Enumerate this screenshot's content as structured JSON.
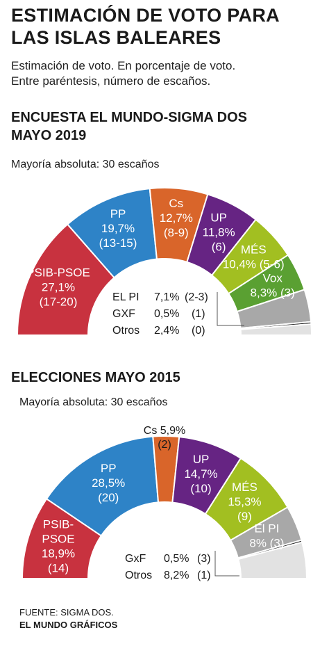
{
  "title_line1": "ESTIMACIÓN DE VOTO PARA",
  "title_line2": "LAS ISLAS BALEARES",
  "subtitle_line1": "Estimación de voto. En porcentaje de voto.",
  "subtitle_line2": "Entre paréntesis, número de escaños.",
  "source_line1": "FUENTE: SIGMA DOS.",
  "source_line2": "EL MUNDO GRÁFICOS",
  "chart_data": [
    {
      "type": "parliament-hemicycle",
      "title_line1": "ENCUESTA EL MUNDO-SIGMA DOS",
      "title_line2": "MAYO 2019",
      "note": "Mayoría absoluta: 30 escaños",
      "series": [
        {
          "party": "PSIB-PSOE",
          "percent": "27,1%",
          "seats": "(17-20)",
          "value": 27.1,
          "color": "#c8323f"
        },
        {
          "party": "PP",
          "percent": "19,7%",
          "seats": "(13-15)",
          "value": 19.7,
          "color": "#2e83c7"
        },
        {
          "party": "Cs",
          "percent": "12,7%",
          "seats": "(8-9)",
          "value": 12.7,
          "color": "#d9652a"
        },
        {
          "party": "UP",
          "percent": "11,8%",
          "seats": "(6)",
          "value": 11.8,
          "color": "#662483"
        },
        {
          "party": "MÉS",
          "percent": "10,4% (5-6)",
          "seats": "",
          "value": 10.4,
          "color": "#a2bf21"
        },
        {
          "party": "Vox",
          "percent": "8,3% (3)",
          "seats": "",
          "value": 8.3,
          "color": "#5aa032"
        },
        {
          "party": "EL PI",
          "percent": "7,1%",
          "seats": "(2-3)",
          "value": 7.1,
          "color": "#a8a8a8"
        },
        {
          "party": "GXF",
          "percent": "0,5%",
          "seats": "(1)",
          "value": 0.5,
          "color": "#1a1a1a"
        },
        {
          "party": "Otros",
          "percent": "2,4%",
          "seats": "(0)",
          "value": 2.4,
          "color": "#e2e2e2"
        }
      ]
    },
    {
      "type": "parliament-hemicycle",
      "title_line1": "ELECCIONES MAYO 2015",
      "title_line2": "",
      "note": "Mayoría absoluta: 30 escaños",
      "series": [
        {
          "party": "PSIB-",
          "party2": "PSOE",
          "percent": "18,9%",
          "seats": "(14)",
          "value": 18.9,
          "color": "#c8323f"
        },
        {
          "party": "PP",
          "percent": "28,5%",
          "seats": "(20)",
          "value": 28.5,
          "color": "#2e83c7"
        },
        {
          "party": "Cs 5,9%",
          "percent": "",
          "seats": "(2)",
          "value": 5.9,
          "color": "#d9652a"
        },
        {
          "party": "UP",
          "percent": "14,7%",
          "seats": "(10)",
          "value": 14.7,
          "color": "#662483"
        },
        {
          "party": "MÉS",
          "percent": "15,3%",
          "seats": "(9)",
          "value": 15.3,
          "color": "#a2bf21"
        },
        {
          "party": "El PI",
          "percent": "8% (3)",
          "seats": "",
          "value": 8.0,
          "color": "#a8a8a8"
        },
        {
          "party": "GxF",
          "percent": "0,5%",
          "seats": "(3)",
          "value": 0.5,
          "color": "#1a1a1a"
        },
        {
          "party": "Otros",
          "percent": "8,2%",
          "seats": "(1)",
          "value": 8.2,
          "color": "#e2e2e2"
        }
      ]
    }
  ]
}
